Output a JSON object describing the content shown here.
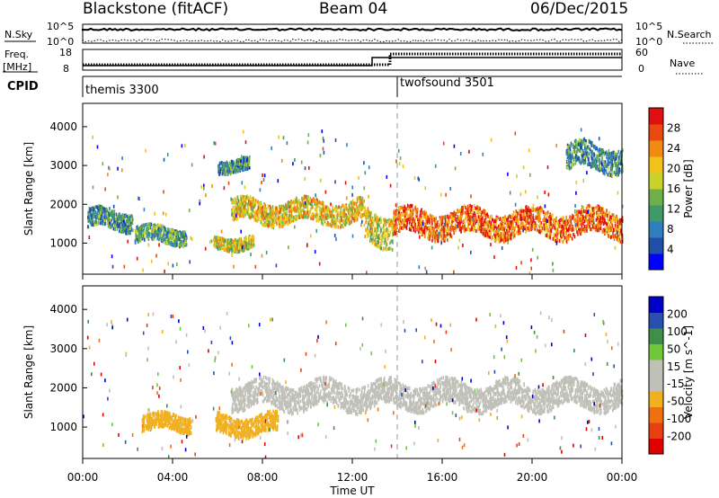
{
  "header": {
    "radar": "Blackstone (fitACF)",
    "beam": "Beam 04",
    "date": "06/Dec/2015"
  },
  "panels": {
    "nsky": {
      "label": "N.Sky",
      "ticks": [
        "10^5",
        "10^0"
      ],
      "right_label": "N.Search",
      "right_ticks": [
        "10^5",
        "10^0"
      ]
    },
    "freq": {
      "label": "Freq.",
      "unit": "[MHz]",
      "ticks": [
        "18",
        "8"
      ],
      "right_label": "Nave",
      "right_ticks": [
        "60",
        "0"
      ]
    },
    "cpid": {
      "label": "CPID",
      "programs": [
        {
          "name": "themis 3300",
          "start_hour": 0
        },
        {
          "name": "twofsound 3501",
          "start_hour": 14
        }
      ]
    }
  },
  "colors": {
    "power_scale": [
      "#0000ff",
      "#1f4fa8",
      "#2f7fbf",
      "#3f9a6a",
      "#6fb04a",
      "#c8d22a",
      "#f2c21a",
      "#f08a10",
      "#e84a10",
      "#e01010"
    ],
    "velocity_scale": [
      "#0000c8",
      "#2a4fb0",
      "#3f8f4a",
      "#6fc83a",
      "#c0c0b8",
      "#c0c0b8",
      "#f0b020",
      "#f07010",
      "#e84010",
      "#e00000"
    ],
    "gs": "#c0c0b8",
    "terminator_line": "#bbbbbb"
  },
  "chart_data": [
    {
      "type": "heatmap",
      "name": "power",
      "ylabel": "Slant Range [km]",
      "y_ticks": [
        1000,
        2000,
        3000,
        4000
      ],
      "ylim": [
        200,
        4600
      ],
      "xlim": [
        0,
        24
      ],
      "colorbar": {
        "label": "Power [dB]",
        "ticks": [
          "4",
          "8",
          "12",
          "16",
          "20",
          "24",
          "28"
        ],
        "range": [
          0,
          32
        ]
      },
      "features": [
        {
          "t0": 0.2,
          "t1": 2.2,
          "r_center": 1600,
          "r_width": 300,
          "value": 10
        },
        {
          "t0": 2.3,
          "t1": 4.6,
          "r_center": 1200,
          "r_width": 250,
          "value": 12
        },
        {
          "t0": 5.8,
          "t1": 7.6,
          "r_center": 1000,
          "r_width": 200,
          "value": 18
        },
        {
          "t0": 6.0,
          "t1": 7.4,
          "r_center": 3000,
          "r_width": 200,
          "value": 10
        },
        {
          "t0": 6.6,
          "t1": 12.5,
          "r_center": 1800,
          "r_width": 350,
          "value": 20
        },
        {
          "t0": 12.5,
          "t1": 13.8,
          "r_center": 1400,
          "r_width": 500,
          "value": 18
        },
        {
          "t0": 13.8,
          "t1": 24.0,
          "r_center": 1500,
          "r_width": 400,
          "value": 26
        },
        {
          "t0": 21.5,
          "t1": 24.0,
          "r_center": 3200,
          "r_width": 400,
          "value": 10
        }
      ]
    },
    {
      "type": "heatmap",
      "name": "velocity",
      "ylabel": "Slant Range [km]",
      "y_ticks": [
        1000,
        2000,
        3000,
        4000
      ],
      "ylim": [
        200,
        4600
      ],
      "xlim": [
        0,
        24
      ],
      "colorbar": {
        "label": "Velocity [m s^-1]",
        "ticks": [
          "200",
          "100",
          "50",
          "15",
          "-15",
          "-50",
          "-100",
          "-200"
        ],
        "range": [
          -250,
          250
        ]
      },
      "features": [
        {
          "t0": 2.6,
          "t1": 4.8,
          "r_center": 1100,
          "r_width": 250,
          "value": -70
        },
        {
          "t0": 5.9,
          "t1": 8.7,
          "r_center": 1050,
          "r_width": 300,
          "value": -90
        },
        {
          "t0": 6.6,
          "t1": 24.0,
          "r_center": 1800,
          "r_width": 400,
          "value": 0
        }
      ]
    }
  ],
  "x_axis": {
    "label": "Time UT",
    "ticks": [
      "00:00",
      "04:00",
      "08:00",
      "12:00",
      "16:00",
      "20:00",
      "00:00"
    ],
    "tick_hours": [
      0,
      4,
      8,
      12,
      16,
      20,
      24
    ]
  }
}
